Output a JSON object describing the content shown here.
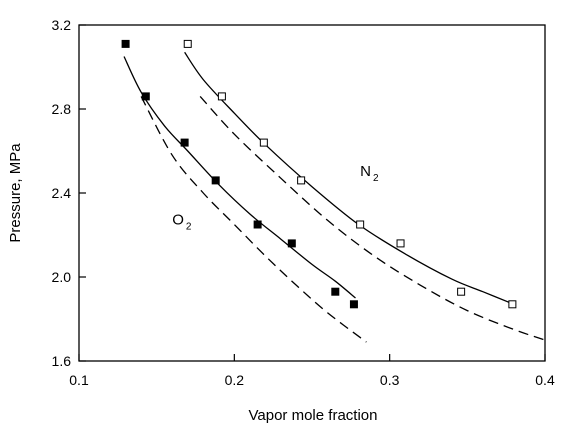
{
  "chart_data": {
    "type": "scatter",
    "xlabel": "Vapor mole fraction",
    "ylabel": "Pressure, MPa",
    "xlim": [
      0.1,
      0.4
    ],
    "ylim": [
      1.6,
      3.2
    ],
    "xticks": [
      0.1,
      0.2,
      0.3,
      0.4
    ],
    "xtick_labels": [
      "0.1",
      "0.2",
      "0.3",
      "0.4"
    ],
    "yticks": [
      1.6,
      2.0,
      2.4,
      2.8,
      3.2
    ],
    "ytick_labels": [
      "1.6",
      "2.0",
      "2.4",
      "2.8",
      "3.2"
    ],
    "grid": false,
    "legend": "none",
    "annotations": [
      {
        "text": "O",
        "subscript": "2",
        "x": 0.16,
        "y": 2.25
      },
      {
        "text": "N",
        "subscript": "2",
        "x": 0.281,
        "y": 2.48
      }
    ],
    "series": [
      {
        "marker": "filled-square",
        "color": "#000000",
        "points": [
          {
            "x": 0.13,
            "y": 3.11
          },
          {
            "x": 0.143,
            "y": 2.86
          },
          {
            "x": 0.168,
            "y": 2.64
          },
          {
            "x": 0.188,
            "y": 2.46
          },
          {
            "x": 0.215,
            "y": 2.25
          },
          {
            "x": 0.237,
            "y": 2.16
          },
          {
            "x": 0.265,
            "y": 1.93
          },
          {
            "x": 0.277,
            "y": 1.87
          }
        ]
      },
      {
        "marker": "open-square",
        "color": "#000000",
        "points": [
          {
            "x": 0.17,
            "y": 3.11
          },
          {
            "x": 0.192,
            "y": 2.86
          },
          {
            "x": 0.219,
            "y": 2.64
          },
          {
            "x": 0.243,
            "y": 2.46
          },
          {
            "x": 0.281,
            "y": 2.25
          },
          {
            "x": 0.307,
            "y": 2.16
          },
          {
            "x": 0.346,
            "y": 1.93
          },
          {
            "x": 0.379,
            "y": 1.87
          }
        ]
      },
      {
        "line": "solid",
        "color": "#000000",
        "points": [
          {
            "x": 0.129,
            "y": 3.05
          },
          {
            "x": 0.14,
            "y": 2.88
          },
          {
            "x": 0.155,
            "y": 2.72
          },
          {
            "x": 0.17,
            "y": 2.6
          },
          {
            "x": 0.19,
            "y": 2.44
          },
          {
            "x": 0.21,
            "y": 2.3
          },
          {
            "x": 0.23,
            "y": 2.18
          },
          {
            "x": 0.25,
            "y": 2.06
          },
          {
            "x": 0.265,
            "y": 1.98
          },
          {
            "x": 0.278,
            "y": 1.9
          }
        ]
      },
      {
        "line": "dashed",
        "color": "#000000",
        "points": [
          {
            "x": 0.14,
            "y": 2.86
          },
          {
            "x": 0.16,
            "y": 2.58
          },
          {
            "x": 0.18,
            "y": 2.4
          },
          {
            "x": 0.2,
            "y": 2.25
          },
          {
            "x": 0.22,
            "y": 2.1
          },
          {
            "x": 0.24,
            "y": 1.96
          },
          {
            "x": 0.26,
            "y": 1.83
          },
          {
            "x": 0.285,
            "y": 1.69
          }
        ]
      },
      {
        "line": "solid",
        "color": "#000000",
        "points": [
          {
            "x": 0.168,
            "y": 3.07
          },
          {
            "x": 0.18,
            "y": 2.94
          },
          {
            "x": 0.2,
            "y": 2.78
          },
          {
            "x": 0.22,
            "y": 2.63
          },
          {
            "x": 0.25,
            "y": 2.43
          },
          {
            "x": 0.28,
            "y": 2.25
          },
          {
            "x": 0.31,
            "y": 2.11
          },
          {
            "x": 0.34,
            "y": 1.99
          },
          {
            "x": 0.36,
            "y": 1.93
          },
          {
            "x": 0.38,
            "y": 1.87
          }
        ]
      },
      {
        "line": "dashed",
        "color": "#000000",
        "points": [
          {
            "x": 0.178,
            "y": 2.86
          },
          {
            "x": 0.2,
            "y": 2.68
          },
          {
            "x": 0.23,
            "y": 2.47
          },
          {
            "x": 0.26,
            "y": 2.27
          },
          {
            "x": 0.29,
            "y": 2.1
          },
          {
            "x": 0.32,
            "y": 1.96
          },
          {
            "x": 0.35,
            "y": 1.84
          },
          {
            "x": 0.38,
            "y": 1.75
          },
          {
            "x": 0.4,
            "y": 1.7
          }
        ]
      }
    ]
  }
}
